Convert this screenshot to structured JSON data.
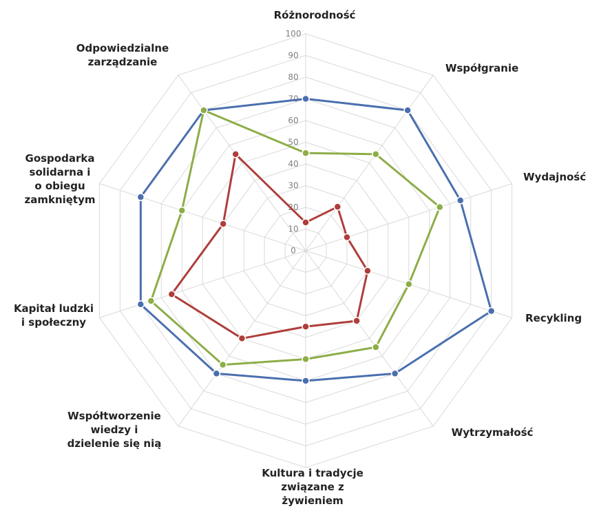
{
  "chart_data": {
    "type": "radar",
    "title": "",
    "categories": [
      "Różnorodność",
      "Współgranie",
      "Wydajność",
      "Recykling",
      "Wytrzymałość",
      "Kultura i tradycje\nzwiązane z\nżywieniem",
      "Współtworzenie\nwiedzy i\ndzielenie się nią",
      "Kapitał ludzki\ni społeczny",
      "Gospodarka\nsolidarna i\no obiegu\nzamkniętym",
      "Odpowiedzialne\nzarządzanie"
    ],
    "ticks": [
      "0",
      "10",
      "20",
      "30",
      "40",
      "50",
      "60",
      "70",
      "80",
      "90",
      "100"
    ],
    "rlim": [
      0,
      100
    ],
    "grid": true,
    "legend": "none",
    "series": [
      {
        "values": [
          70,
          80,
          75,
          90,
          70,
          60,
          70,
          80,
          80,
          80
        ],
        "color": "#4a6fae"
      },
      {
        "values": [
          45,
          55,
          65,
          50,
          55,
          50,
          65,
          75,
          60,
          80
        ],
        "color": "#8dad47"
      },
      {
        "values": [
          13,
          25,
          20,
          30,
          40,
          35,
          50,
          65,
          40,
          55
        ],
        "color": "#ae3e3b"
      }
    ]
  }
}
